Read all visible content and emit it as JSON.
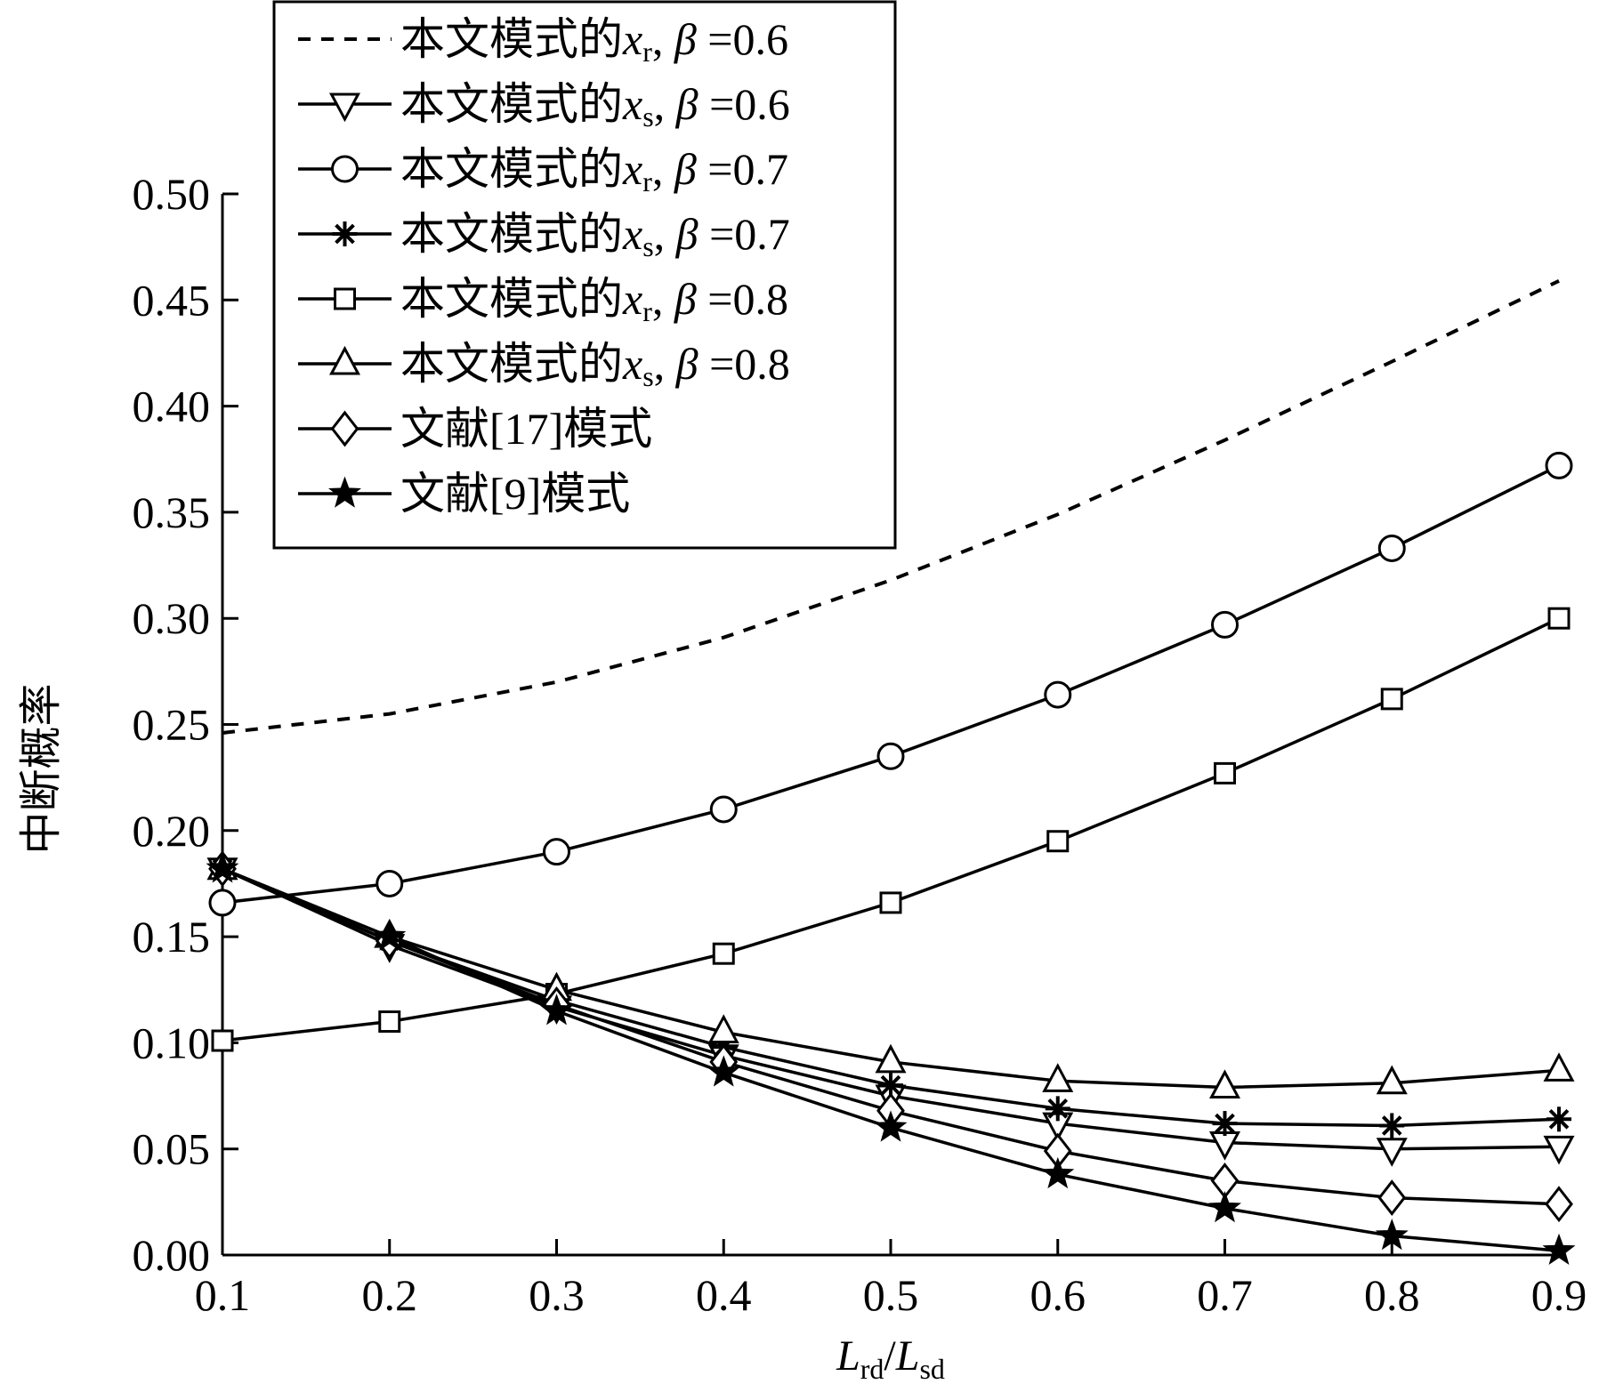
{
  "chart_data": {
    "type": "line",
    "x": [
      0.1,
      0.2,
      0.3,
      0.4,
      0.5,
      0.6,
      0.7,
      0.8,
      0.9
    ],
    "xlim": [
      0.1,
      0.9
    ],
    "ylim": [
      0.0,
      0.5
    ],
    "x_ticks": [
      "0.1",
      "0.2",
      "0.3",
      "0.4",
      "0.5",
      "0.6",
      "0.7",
      "0.8",
      "0.9"
    ],
    "y_ticks": [
      "0.00",
      "0.05",
      "0.10",
      "0.15",
      "0.20",
      "0.25",
      "0.30",
      "0.35",
      "0.40",
      "0.45",
      "0.50"
    ],
    "xlabel": {
      "main1": "L",
      "sub1": "rd",
      "slash": "/",
      "main2": "L",
      "sub2": "sd"
    },
    "ylabel": "中断概率",
    "legend_position": "top-left",
    "grid": false,
    "series": [
      {
        "name": "本文模式的xr, β =0.6",
        "label": {
          "prefix": "本文模式的",
          "var": "x",
          "sub": "r",
          "mid": ", ",
          "beta": "β",
          "suffix": " =0.6"
        },
        "marker": "none",
        "dash": true,
        "values": [
          0.246,
          0.255,
          0.27,
          0.291,
          0.318,
          0.349,
          0.384,
          0.421,
          0.459
        ]
      },
      {
        "name": "本文模式的xs, β =0.6",
        "label": {
          "prefix": "本文模式的",
          "var": "x",
          "sub": "s",
          "mid": ", ",
          "beta": "β",
          "suffix": " =0.6"
        },
        "marker": "triangle-down",
        "dash": false,
        "values": [
          0.182,
          0.146,
          0.117,
          0.094,
          0.075,
          0.062,
          0.053,
          0.05,
          0.051
        ]
      },
      {
        "name": "本文模式的xr, β =0.7",
        "label": {
          "prefix": "本文模式的",
          "var": "x",
          "sub": "r",
          "mid": ", ",
          "beta": "β",
          "suffix": " =0.7"
        },
        "marker": "circle",
        "dash": false,
        "values": [
          0.166,
          0.175,
          0.19,
          0.21,
          0.235,
          0.264,
          0.297,
          0.333,
          0.372
        ]
      },
      {
        "name": "本文模式的xs, β =0.7",
        "label": {
          "prefix": "本文模式的",
          "var": "x",
          "sub": "s",
          "mid": ", ",
          "beta": "β",
          "suffix": " =0.7"
        },
        "marker": "asterisk",
        "dash": false,
        "values": [
          0.182,
          0.148,
          0.12,
          0.098,
          0.08,
          0.069,
          0.062,
          0.061,
          0.064
        ]
      },
      {
        "name": "本文模式的xr, β =0.8",
        "label": {
          "prefix": "本文模式的",
          "var": "x",
          "sub": "r",
          "mid": ", ",
          "beta": "β",
          "suffix": " =0.8"
        },
        "marker": "square",
        "dash": false,
        "values": [
          0.101,
          0.11,
          0.123,
          0.142,
          0.166,
          0.195,
          0.227,
          0.262,
          0.3
        ]
      },
      {
        "name": "本文模式的xs, β =0.8",
        "label": {
          "prefix": "本文模式的",
          "var": "x",
          "sub": "s",
          "mid": ", ",
          "beta": "β",
          "suffix": " =0.8"
        },
        "marker": "triangle-up",
        "dash": false,
        "values": [
          0.182,
          0.15,
          0.125,
          0.105,
          0.091,
          0.082,
          0.079,
          0.081,
          0.087
        ]
      },
      {
        "name": "文献[17]模式",
        "label": {
          "prefix": "文献[17]模式"
        },
        "marker": "diamond",
        "dash": false,
        "values": [
          0.182,
          0.148,
          0.118,
          0.091,
          0.068,
          0.049,
          0.035,
          0.027,
          0.024
        ]
      },
      {
        "name": "文献[9]模式",
        "label": {
          "prefix": "文献[9]模式"
        },
        "marker": "star",
        "dash": false,
        "values": [
          0.182,
          0.15,
          0.115,
          0.086,
          0.06,
          0.038,
          0.022,
          0.009,
          0.002
        ]
      }
    ]
  }
}
